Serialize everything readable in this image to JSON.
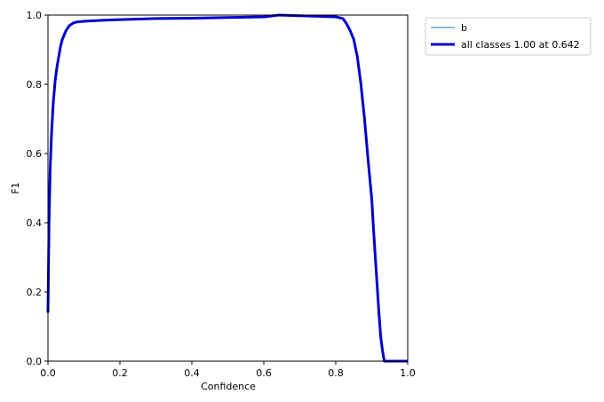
{
  "chart_data": {
    "type": "line",
    "title": "",
    "xlabel": "Confidence",
    "ylabel": "F1",
    "xlim": [
      0,
      1
    ],
    "ylim": [
      0,
      1
    ],
    "xticks": [
      "0.0",
      "0.2",
      "0.4",
      "0.6",
      "0.8",
      "1.0"
    ],
    "yticks": [
      "0.0",
      "0.2",
      "0.4",
      "0.6",
      "0.8",
      "1.0"
    ],
    "grid": false,
    "legend_position": "outside-right",
    "series": [
      {
        "name": "b",
        "color": "#1f77b4",
        "x": [
          0.0,
          0.003,
          0.006,
          0.01,
          0.015,
          0.02,
          0.025,
          0.03,
          0.035,
          0.04,
          0.05,
          0.06,
          0.07,
          0.08,
          0.1,
          0.15,
          0.2,
          0.3,
          0.4,
          0.5,
          0.6,
          0.642,
          0.7,
          0.8,
          0.82,
          0.83,
          0.84,
          0.85,
          0.86,
          0.87,
          0.88,
          0.89,
          0.9,
          0.905,
          0.91,
          0.915,
          0.92,
          0.925,
          0.93,
          0.935,
          0.94,
          0.95,
          1.0
        ],
        "y": [
          0.14,
          0.4,
          0.55,
          0.66,
          0.75,
          0.81,
          0.85,
          0.88,
          0.91,
          0.93,
          0.955,
          0.97,
          0.977,
          0.98,
          0.982,
          0.985,
          0.987,
          0.99,
          0.991,
          0.993,
          0.995,
          1.0,
          0.998,
          0.995,
          0.99,
          0.975,
          0.955,
          0.93,
          0.88,
          0.8,
          0.7,
          0.58,
          0.47,
          0.38,
          0.3,
          0.22,
          0.14,
          0.07,
          0.03,
          0.0,
          0.0,
          0.0,
          0.0
        ]
      },
      {
        "name": "all classes 1.00 at 0.642",
        "color": "#0000cc",
        "x": [
          0.0,
          0.003,
          0.006,
          0.01,
          0.015,
          0.02,
          0.025,
          0.03,
          0.035,
          0.04,
          0.05,
          0.06,
          0.07,
          0.08,
          0.1,
          0.15,
          0.2,
          0.3,
          0.4,
          0.5,
          0.6,
          0.642,
          0.7,
          0.8,
          0.82,
          0.83,
          0.84,
          0.85,
          0.86,
          0.87,
          0.88,
          0.89,
          0.9,
          0.905,
          0.91,
          0.915,
          0.92,
          0.925,
          0.93,
          0.935,
          0.94,
          0.95,
          1.0
        ],
        "y": [
          0.14,
          0.4,
          0.55,
          0.66,
          0.75,
          0.81,
          0.85,
          0.88,
          0.91,
          0.93,
          0.955,
          0.97,
          0.977,
          0.98,
          0.982,
          0.985,
          0.987,
          0.99,
          0.991,
          0.993,
          0.995,
          1.0,
          0.998,
          0.995,
          0.99,
          0.975,
          0.955,
          0.93,
          0.88,
          0.8,
          0.7,
          0.58,
          0.47,
          0.38,
          0.3,
          0.22,
          0.14,
          0.07,
          0.03,
          0.0,
          0.0,
          0.0,
          0.0
        ]
      }
    ]
  }
}
